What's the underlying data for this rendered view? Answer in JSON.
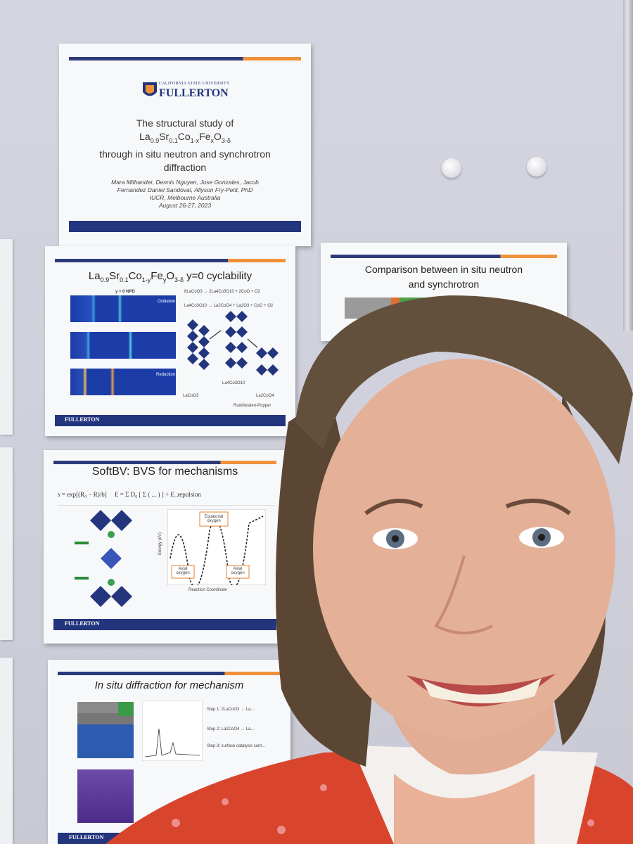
{
  "poster": {
    "title_slide": {
      "university_top": "CALIFORNIA STATE UNIVERSITY",
      "university": "FULLERTON",
      "title_line1": "The structural study of",
      "formula": "La0.9Sr0.1Co1-xFexO3-δ",
      "title_line3": "through in situ neutron and synchrotron",
      "title_line4": "diffraction",
      "authors_line1": "Mara Milhander, Dennis Nguyen, Jose Gonzales, Jacob",
      "authors_line2": "Fernandez Daniel Sandoval, Allyson Fry-Petit, PhD",
      "venue": "IUCR, Melbourne Australia",
      "date": "August 26-27, 2023"
    },
    "cyclability_slide": {
      "heading": "La0.9Sr0.1Co1-yFeyO3-δ y=0 cyclability",
      "panel_title": "y = 0 NPD",
      "panel_labels": [
        "Oxidation",
        "Reduction"
      ],
      "reaction_1": "8LaCoO3 → 2La4Co3O10 + 2CoO + O2",
      "reaction_2": "La4Co3O10 → La2CoO4 + La2O3 + CoO + O2",
      "phase_labels": [
        "LaCoO3",
        "La4Co3O10",
        "La2CoO4"
      ],
      "ruddlesden": "Ruddlesden-Popper",
      "footer_logo": "FULLERTON"
    },
    "comparison_slide": {
      "heading_line1": "Comparison between in situ neutron",
      "heading_line2": "and synchrotron"
    },
    "softbv_slide": {
      "heading": "SoftBV: BVS for mechanisms",
      "equatorial_label": "Equatorial oxygen",
      "axial_label": "Axial oxygen",
      "xlabel": "Reaction Coordinate",
      "ylabel": "Energy (eV)",
      "footer_logo": "FULLERTON"
    },
    "insitu_slide": {
      "heading": "In situ diffraction for mechanism",
      "steps": [
        "Step 1: 2LaCoO3 → La...",
        "Step 2: La2CoO4 → La...",
        "Step 3: surface catalysis cont..."
      ],
      "footer_logo": "FULLERTON"
    }
  },
  "colors": {
    "navy": "#23357d",
    "orange": "#f0913a",
    "shirt": "#d8442c",
    "hair": "#5b4634",
    "skin": "#e4b097"
  }
}
